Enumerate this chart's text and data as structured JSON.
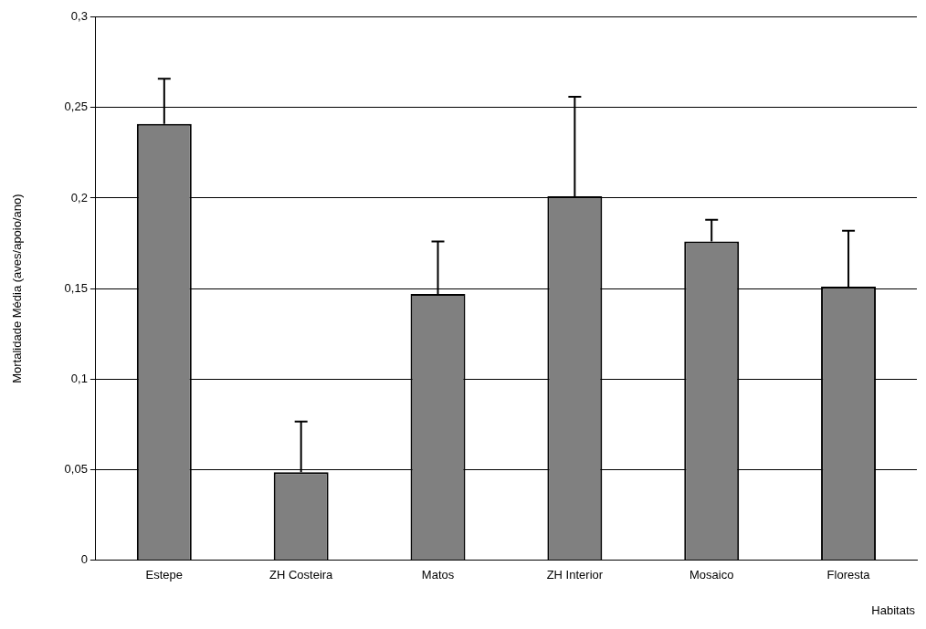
{
  "chart_data": {
    "type": "bar",
    "xlabel": "Habitats",
    "ylabel": "Mortalidade Média (aves/apoio/ano)",
    "categories": [
      "Estepe",
      "ZH Costeira",
      "Matos",
      "ZH Interior",
      "Mosaico",
      "Floresta"
    ],
    "values": [
      0.241,
      0.0485,
      0.147,
      0.201,
      0.176,
      0.151
    ],
    "errors": [
      [
        0.241,
        0.266
      ],
      [
        0.0485,
        0.0765
      ],
      [
        0.147,
        0.176
      ],
      [
        0.201,
        0.256
      ],
      [
        0.176,
        0.188
      ],
      [
        0.151,
        0.182
      ]
    ],
    "color": "#808080",
    "ylim": [
      0,
      0.3
    ],
    "yticks": [
      {
        "value": 0,
        "label": "0"
      },
      {
        "value": 0.05,
        "label": "0,05"
      },
      {
        "value": 0.1,
        "label": "0,1"
      },
      {
        "value": 0.15,
        "label": "0,15"
      },
      {
        "value": 0.2,
        "label": "0,2"
      },
      {
        "value": 0.25,
        "label": "0,25"
      },
      {
        "value": 0.3,
        "label": "0,3"
      }
    ],
    "grid": "y",
    "legend": false
  }
}
